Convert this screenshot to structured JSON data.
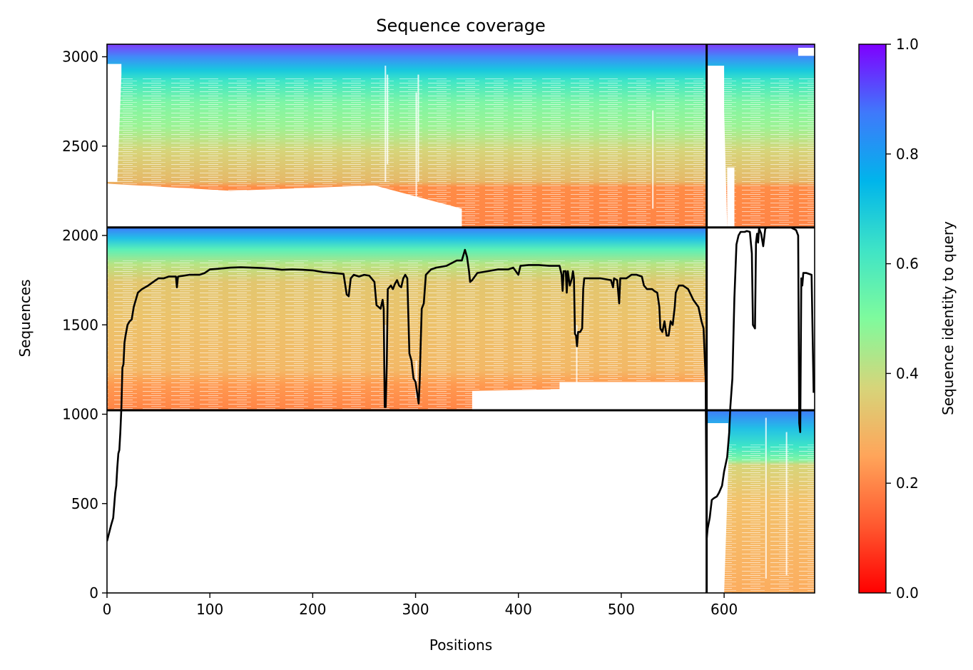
{
  "chart_data": {
    "type": "heatmap",
    "title": "Sequence coverage",
    "xlabel": "Positions",
    "ylabel": "Sequences",
    "xlim": [
      0,
      688
    ],
    "ylim": [
      0,
      3070
    ],
    "x_ticks": [
      0,
      100,
      200,
      300,
      400,
      500,
      600
    ],
    "y_ticks": [
      0,
      500,
      1000,
      1500,
      2000,
      2500,
      3000
    ],
    "colorbar": {
      "label": "Sequence identity to query",
      "range": [
        0.0,
        1.0
      ],
      "ticks": [
        0.0,
        0.2,
        0.4,
        0.6,
        0.8,
        1.0
      ],
      "colormap": "rainbow_r",
      "colors": [
        "#ff0000",
        "#ff7f3f",
        "#ffbf6a",
        "#bfe37e",
        "#7ffb9d",
        "#3fe4c6",
        "#00b5eb",
        "#3f79fb",
        "#7f00ff"
      ]
    },
    "segment_boundaries": {
      "x": [
        583
      ],
      "y": [
        1022,
        2045
      ]
    },
    "blocks": [
      {
        "name": "block-top-main",
        "x": [
          0,
          583
        ],
        "y": [
          2045,
          3070
        ],
        "identity_top": 0.98,
        "identity_bottom": 0.2
      },
      {
        "name": "block-top-right",
        "x": [
          583,
          688
        ],
        "y": [
          2045,
          3070
        ],
        "identity_top": 0.98,
        "identity_bottom": 0.2
      },
      {
        "name": "block-middle-main",
        "x": [
          0,
          583
        ],
        "y": [
          1022,
          2045
        ],
        "identity_top": 0.85,
        "identity_bottom": 0.2
      },
      {
        "name": "block-bottom-right",
        "x": [
          583,
          688
        ],
        "y": [
          0,
          1022
        ],
        "identity_top": 0.85,
        "identity_bottom": 0.28
      }
    ],
    "coverage_line": {
      "color": "#000000",
      "points": [
        [
          0,
          290
        ],
        [
          4,
          380
        ],
        [
          6,
          420
        ],
        [
          8,
          560
        ],
        [
          9,
          600
        ],
        [
          10,
          700
        ],
        [
          11,
          780
        ],
        [
          12,
          800
        ],
        [
          13,
          900
        ],
        [
          14,
          1040
        ],
        [
          15,
          1260
        ],
        [
          16,
          1280
        ],
        [
          17,
          1400
        ],
        [
          18,
          1440
        ],
        [
          20,
          1500
        ],
        [
          22,
          1520
        ],
        [
          24,
          1530
        ],
        [
          26,
          1600
        ],
        [
          28,
          1640
        ],
        [
          30,
          1680
        ],
        [
          34,
          1700
        ],
        [
          40,
          1720
        ],
        [
          45,
          1740
        ],
        [
          50,
          1760
        ],
        [
          55,
          1760
        ],
        [
          60,
          1770
        ],
        [
          65,
          1770
        ],
        [
          67,
          1770
        ],
        [
          68,
          1710
        ],
        [
          69,
          1770
        ],
        [
          80,
          1780
        ],
        [
          90,
          1780
        ],
        [
          95,
          1790
        ],
        [
          100,
          1810
        ],
        [
          110,
          1815
        ],
        [
          120,
          1820
        ],
        [
          130,
          1822
        ],
        [
          150,
          1818
        ],
        [
          160,
          1815
        ],
        [
          170,
          1808
        ],
        [
          180,
          1810
        ],
        [
          190,
          1808
        ],
        [
          200,
          1805
        ],
        [
          210,
          1795
        ],
        [
          220,
          1790
        ],
        [
          230,
          1785
        ],
        [
          233,
          1670
        ],
        [
          235,
          1660
        ],
        [
          237,
          1760
        ],
        [
          240,
          1780
        ],
        [
          245,
          1770
        ],
        [
          250,
          1780
        ],
        [
          255,
          1775
        ],
        [
          260,
          1740
        ],
        [
          262,
          1610
        ],
        [
          264,
          1600
        ],
        [
          266,
          1590
        ],
        [
          268,
          1640
        ],
        [
          269,
          1590
        ],
        [
          270,
          1040
        ],
        [
          271,
          1040
        ],
        [
          272,
          1280
        ],
        [
          273,
          1700
        ],
        [
          276,
          1720
        ],
        [
          278,
          1700
        ],
        [
          280,
          1730
        ],
        [
          282,
          1750
        ],
        [
          284,
          1720
        ],
        [
          286,
          1710
        ],
        [
          288,
          1760
        ],
        [
          290,
          1780
        ],
        [
          292,
          1760
        ],
        [
          294,
          1340
        ],
        [
          296,
          1300
        ],
        [
          298,
          1200
        ],
        [
          300,
          1180
        ],
        [
          302,
          1100
        ],
        [
          303,
          1060
        ],
        [
          304,
          1180
        ],
        [
          305,
          1400
        ],
        [
          306,
          1590
        ],
        [
          308,
          1620
        ],
        [
          310,
          1780
        ],
        [
          315,
          1810
        ],
        [
          320,
          1820
        ],
        [
          330,
          1830
        ],
        [
          340,
          1860
        ],
        [
          345,
          1860
        ],
        [
          348,
          1920
        ],
        [
          350,
          1880
        ],
        [
          352,
          1800
        ],
        [
          353,
          1740
        ],
        [
          355,
          1750
        ],
        [
          360,
          1790
        ],
        [
          370,
          1800
        ],
        [
          380,
          1810
        ],
        [
          390,
          1810
        ],
        [
          395,
          1820
        ],
        [
          400,
          1780
        ],
        [
          402,
          1830
        ],
        [
          410,
          1835
        ],
        [
          420,
          1835
        ],
        [
          430,
          1830
        ],
        [
          440,
          1830
        ],
        [
          442,
          1780
        ],
        [
          443,
          1690
        ],
        [
          444,
          1800
        ],
        [
          446,
          1800
        ],
        [
          447,
          1680
        ],
        [
          448,
          1800
        ],
        [
          450,
          1720
        ],
        [
          452,
          1760
        ],
        [
          453,
          1800
        ],
        [
          454,
          1760
        ],
        [
          455,
          1450
        ],
        [
          456,
          1440
        ],
        [
          457,
          1380
        ],
        [
          458,
          1460
        ],
        [
          460,
          1460
        ],
        [
          462,
          1480
        ],
        [
          463,
          1700
        ],
        [
          464,
          1760
        ],
        [
          470,
          1760
        ],
        [
          480,
          1760
        ],
        [
          490,
          1750
        ],
        [
          492,
          1710
        ],
        [
          493,
          1760
        ],
        [
          496,
          1750
        ],
        [
          498,
          1620
        ],
        [
          499,
          1760
        ],
        [
          500,
          1760
        ],
        [
          505,
          1760
        ],
        [
          510,
          1780
        ],
        [
          515,
          1780
        ],
        [
          520,
          1770
        ],
        [
          522,
          1720
        ],
        [
          525,
          1700
        ],
        [
          528,
          1700
        ],
        [
          530,
          1700
        ],
        [
          532,
          1690
        ],
        [
          535,
          1680
        ],
        [
          537,
          1600
        ],
        [
          538,
          1480
        ],
        [
          540,
          1460
        ],
        [
          542,
          1520
        ],
        [
          544,
          1440
        ],
        [
          546,
          1440
        ],
        [
          548,
          1520
        ],
        [
          550,
          1500
        ],
        [
          552,
          1600
        ],
        [
          553,
          1680
        ],
        [
          556,
          1720
        ],
        [
          560,
          1720
        ],
        [
          565,
          1700
        ],
        [
          570,
          1640
        ],
        [
          575,
          1600
        ],
        [
          578,
          1520
        ],
        [
          580,
          1480
        ],
        [
          582,
          1200
        ],
        [
          583,
          300
        ],
        [
          584,
          360
        ],
        [
          586,
          420
        ],
        [
          588,
          520
        ],
        [
          590,
          530
        ],
        [
          593,
          540
        ],
        [
          595,
          560
        ],
        [
          598,
          600
        ],
        [
          600,
          680
        ],
        [
          603,
          760
        ],
        [
          605,
          900
        ],
        [
          606,
          1040
        ],
        [
          608,
          1200
        ],
        [
          610,
          1650
        ],
        [
          612,
          1950
        ],
        [
          614,
          2000
        ],
        [
          616,
          2020
        ],
        [
          620,
          2020
        ],
        [
          622,
          2025
        ],
        [
          625,
          2020
        ],
        [
          627,
          1900
        ],
        [
          628,
          1500
        ],
        [
          630,
          1480
        ],
        [
          631,
          1960
        ],
        [
          632,
          2010
        ],
        [
          633,
          1960
        ],
        [
          634,
          2040
        ],
        [
          636,
          2010
        ],
        [
          638,
          1940
        ],
        [
          640,
          2040
        ],
        [
          642,
          2045
        ],
        [
          645,
          2045
        ],
        [
          650,
          2045
        ],
        [
          660,
          2045
        ],
        [
          665,
          2045
        ],
        [
          670,
          2030
        ],
        [
          672,
          2000
        ],
        [
          673,
          950
        ],
        [
          674,
          900
        ],
        [
          675,
          1760
        ],
        [
          676,
          1720
        ],
        [
          677,
          1790
        ],
        [
          680,
          1790
        ],
        [
          685,
          1780
        ],
        [
          687,
          1120
        ]
      ]
    }
  }
}
